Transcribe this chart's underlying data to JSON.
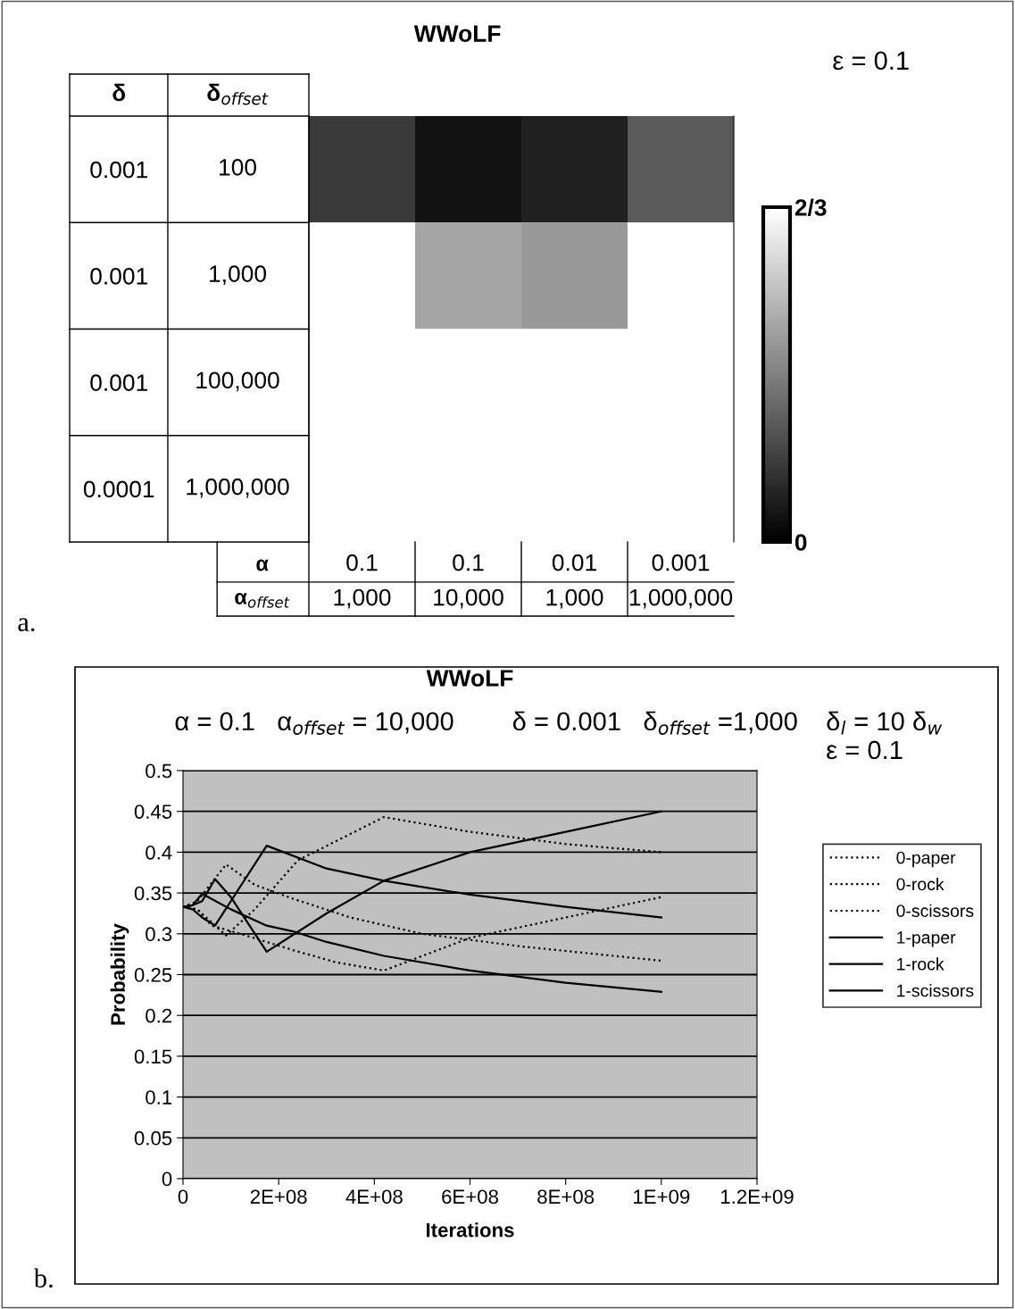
{
  "chart_data": [
    {
      "type": "heatmap",
      "title": "WWoLF",
      "categories": [
        "0.1\n1,000",
        "0.1\n10,000",
        "0.01\n1,000",
        "0.001\n1,000,000"
      ],
      "xlabel": "α\nα$_{offset}$",
      "ylabel": "δ",
      "y2label": "δ$_{offset}$",
      "y_categories": [
        "0.001",
        "0.001",
        "0.001",
        "0.0001"
      ],
      "y2_categories": [
        "100",
        "1,000",
        "100,000",
        "1,000,000"
      ],
      "cells": [
        [
          0.152,
          0.047,
          0.084,
          0.235
        ],
        [
          0.6667,
          0.43,
          0.4,
          0.6667
        ],
        [
          0.6667,
          0.6667,
          0.6667,
          0.6667
        ],
        [
          0.6667,
          0.6667,
          0.6667,
          0.6667
        ]
      ],
      "clim": [
        0,
        0.6667
      ],
      "cticks": [
        {
          "value": 0,
          "label": "0"
        },
        {
          "value": 0.6667,
          "label": "2/3"
        }
      ],
      "annotations": [
        "ε = 0.1",
        "a."
      ]
    },
    {
      "type": "line",
      "title": "WWoLF",
      "subtitle": "α = 0.1   α$_{offset}$ = 10,000        δ = 0.001   δ$_{offset}$ =1,000",
      "xlabel": "Iterations",
      "ylabel": "Probability",
      "xlim": [
        0,
        1200000000
      ],
      "xticks": [
        0,
        {
          "value": 200000000,
          "label": "2E+08"
        },
        {
          "value": 400000000,
          "label": "4E+08"
        },
        {
          "value": 600000000,
          "label": "6E+08"
        },
        {
          "value": 800000000,
          "label": "8E+08"
        },
        {
          "value": 1000000000,
          "label": "1E+09"
        },
        {
          "value": 1200000000,
          "label": "1.2E+09"
        }
      ],
      "ylim": [
        0,
        0.5
      ],
      "yticks": [
        0,
        0.05,
        0.1,
        0.15,
        0.2,
        0.25,
        0.3,
        0.35,
        0.4,
        0.45,
        0.5
      ],
      "grid": "y",
      "legend": "right",
      "marker": "none",
      "series": [
        {
          "name": "0-paper",
          "color": "#000000",
          "line_style": "dotted",
          "x": [
            0,
            30000000,
            90000000,
            150000000,
            240000000,
            420000000,
            600000000,
            800000000,
            1000000000
          ],
          "values": [
            0.333,
            0.33,
            0.298,
            0.33,
            0.39,
            0.443,
            0.425,
            0.41,
            0.4
          ]
        },
        {
          "name": "0-rock",
          "color": "#000000",
          "line_style": "dotted",
          "x": [
            0,
            30000000,
            90000000,
            150000000,
            230000000,
            350000000,
            500000000,
            700000000,
            1000000000
          ],
          "values": [
            0.333,
            0.34,
            0.385,
            0.36,
            0.343,
            0.32,
            0.3,
            0.285,
            0.267
          ]
        },
        {
          "name": "0-scissors",
          "color": "#000000",
          "line_style": "dotted",
          "x": [
            0,
            30000000,
            60000000,
            120000000,
            230000000,
            320000000,
            420000000,
            600000000,
            800000000,
            1000000000
          ],
          "values": [
            0.333,
            0.33,
            0.31,
            0.3,
            0.28,
            0.265,
            0.255,
            0.295,
            0.32,
            0.345
          ]
        },
        {
          "name": "1-paper",
          "color": "#000000",
          "line_style": "solid",
          "x": [
            0,
            20000000,
            40000000,
            67000000,
            100000000,
            175000000,
            300000000,
            420000000,
            600000000,
            800000000,
            1000000000
          ],
          "values": [
            0.333,
            0.335,
            0.34,
            0.367,
            0.345,
            0.278,
            0.325,
            0.365,
            0.4,
            0.425,
            0.45
          ]
        },
        {
          "name": "1-rock",
          "color": "#000000",
          "line_style": "solid",
          "x": [
            0,
            20000000,
            40000000,
            67000000,
            100000000,
            175000000,
            300000000,
            420000000,
            600000000,
            800000000,
            1000000000
          ],
          "values": [
            0.333,
            0.33,
            0.32,
            0.31,
            0.34,
            0.408,
            0.38,
            0.365,
            0.348,
            0.333,
            0.32
          ]
        },
        {
          "name": "1-scissors",
          "color": "#000000",
          "line_style": "solid",
          "x": [
            0,
            20000000,
            40000000,
            100000000,
            175000000,
            230000000,
            300000000,
            420000000,
            600000000,
            800000000,
            1000000000
          ],
          "values": [
            0.333,
            0.335,
            0.349,
            0.33,
            0.31,
            0.303,
            0.29,
            0.273,
            0.255,
            0.24,
            0.229
          ]
        }
      ],
      "annotations": [
        "δ$_{l}$ = 10 δ$_{w}$",
        "ε = 0.1",
        "b."
      ]
    }
  ]
}
